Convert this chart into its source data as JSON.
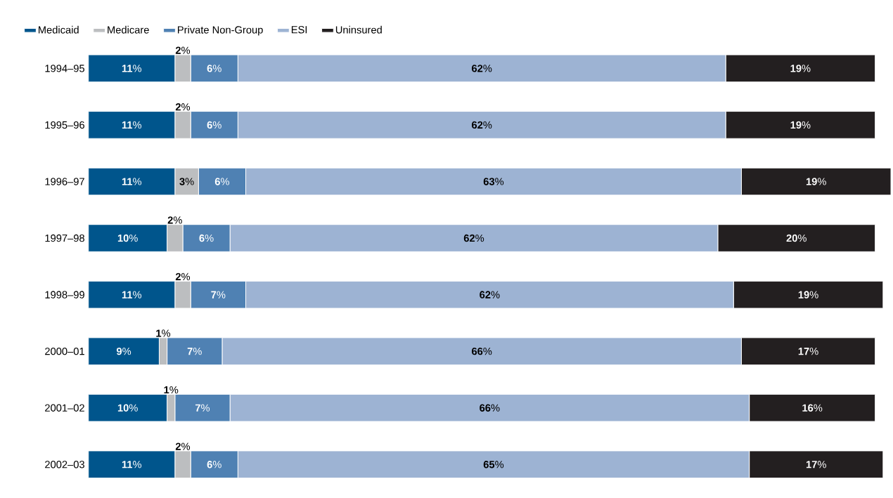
{
  "chart_data": {
    "type": "bar",
    "orientation": "horizontal",
    "stacked": true,
    "legend": "top left",
    "xlim": [
      0,
      102
    ],
    "categories": [
      "1994–95",
      "1995–96",
      "1996–97",
      "1997–98",
      "1998–99",
      "2000–01",
      "2001–02",
      "2002–03"
    ],
    "series": [
      {
        "name": "Medicaid",
        "color": "#00558c",
        "values": [
          11,
          11,
          11,
          10,
          11,
          9,
          10,
          11
        ],
        "value_labels": [
          "**11**%",
          "**11**%",
          "**11**%",
          "**10**%",
          "**11**%",
          "**9**%",
          "**10**%",
          "**11**%"
        ]
      },
      {
        "name": "Medicare",
        "color": "#bcbec0",
        "values": [
          2,
          2,
          3,
          2,
          2,
          1,
          1,
          2
        ],
        "value_labels": [
          "**2**%",
          "**2**%",
          "**3**%",
          "**2**%",
          "**2**%",
          "**1**%",
          "**1**%",
          "**2**%"
        ]
      },
      {
        "name": "Private Non-Group",
        "color": "#4f81b3",
        "values": [
          6,
          6,
          6,
          6,
          7,
          7,
          7,
          6
        ],
        "value_labels": [
          "**6**%",
          "**6**%",
          "**6**%",
          "**6**%",
          "**7**%",
          "**7**%",
          "**7**%",
          "**6**%"
        ]
      },
      {
        "name": "ESI",
        "color": "#9db3d3",
        "values": [
          62,
          62,
          63,
          62,
          62,
          66,
          66,
          65
        ],
        "value_labels": [
          "**62**%",
          "**62**%",
          "**63**%",
          "**62**%",
          "**62**%",
          "**66**%",
          "**66**%",
          "**65**%"
        ]
      },
      {
        "name": "Uninsured",
        "color": "#231f20",
        "values": [
          19,
          19,
          19,
          20,
          19,
          17,
          16,
          17
        ],
        "value_labels": [
          "**19**%",
          "**19**%",
          "**19**%",
          "**20**%",
          "**19**%",
          "**17**%",
          "**16**%",
          "**17**%"
        ]
      }
    ]
  }
}
